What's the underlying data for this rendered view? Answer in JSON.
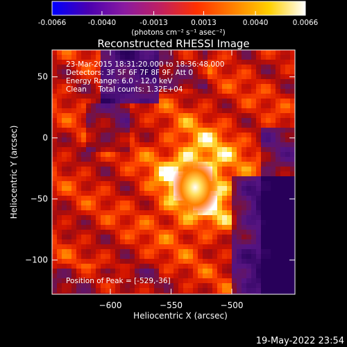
{
  "colorbar": {
    "ticks": [
      "-0.0066",
      "-0.0040",
      "-0.0013",
      "0.0013",
      "0.0040",
      "0.0066"
    ],
    "tick_values": [
      -0.0066,
      -0.004,
      -0.0013,
      0.0013,
      0.004,
      0.0066
    ],
    "range": [
      -0.0066,
      0.0066
    ],
    "unit": "(photons cm⁻² s⁻¹ asec⁻²)",
    "colormap": [
      "#0000ff",
      "#4a00b0",
      "#8a1aa0",
      "#c02060",
      "#ff3000",
      "#ff8000",
      "#ffd000",
      "#ffffff"
    ]
  },
  "chart_data": {
    "type": "heatmap",
    "title": "Reconstructed RHESSI Image",
    "xlabel": "Heliocentric X (arcsec)",
    "ylabel": "Heliocentric Y (arcsec)",
    "xlim": [
      -648,
      -448
    ],
    "ylim": [
      -128,
      72
    ],
    "xticks": [
      -600,
      -550,
      -500
    ],
    "yticks": [
      50,
      0,
      -50,
      -100
    ],
    "peak": [
      -529,
      -36
    ],
    "annotations": {
      "line1": "23-Mar-2015 18:31:20.000 to 18:36:48.000",
      "line2": "Detectors: 3F 5F 6F 7F 8F 9F, Att 0",
      "line3": "Energy Range: 6.0 - 12.0 keV",
      "line4": "Clean     Total counts: 1.32E+04",
      "peak_label": "Position of Peak = [-529,-36]"
    }
  },
  "footer": {
    "date": "19-May-2022 23:54"
  }
}
